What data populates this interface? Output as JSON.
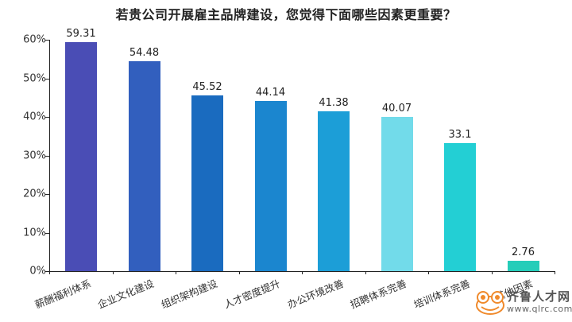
{
  "chart_data": {
    "type": "bar",
    "title": "若贵公司开展雇主品牌建设，您觉得下面哪些因素更重要？",
    "xlabel": "",
    "ylabel": "",
    "ylim": [
      0,
      60
    ],
    "yticks": [
      "0%",
      "10%",
      "20%",
      "30%",
      "40%",
      "50%",
      "60%"
    ],
    "grid": false,
    "legend": null,
    "categories": [
      "薪酬福利体系",
      "企业文化建设",
      "组织架构建设",
      "人才密度提升",
      "办公环境改善",
      "招聘体系完善",
      "培训体系完善",
      "其他因素"
    ],
    "values": [
      59.31,
      54.48,
      45.52,
      44.14,
      41.38,
      40.07,
      33.1,
      2.76
    ],
    "value_labels": [
      "59.31",
      "54.48",
      "45.52",
      "44.14",
      "41.38",
      "40.07",
      "33.1",
      "2.76"
    ],
    "colors": [
      "#4a4db5",
      "#325fbe",
      "#1a6bbf",
      "#1b86cf",
      "#1c9ed7",
      "#72dbea",
      "#23cfd4",
      "#25cdb9"
    ]
  },
  "watermark": {
    "brand": "齐鲁人才网",
    "url": "www.qlrc.com"
  }
}
